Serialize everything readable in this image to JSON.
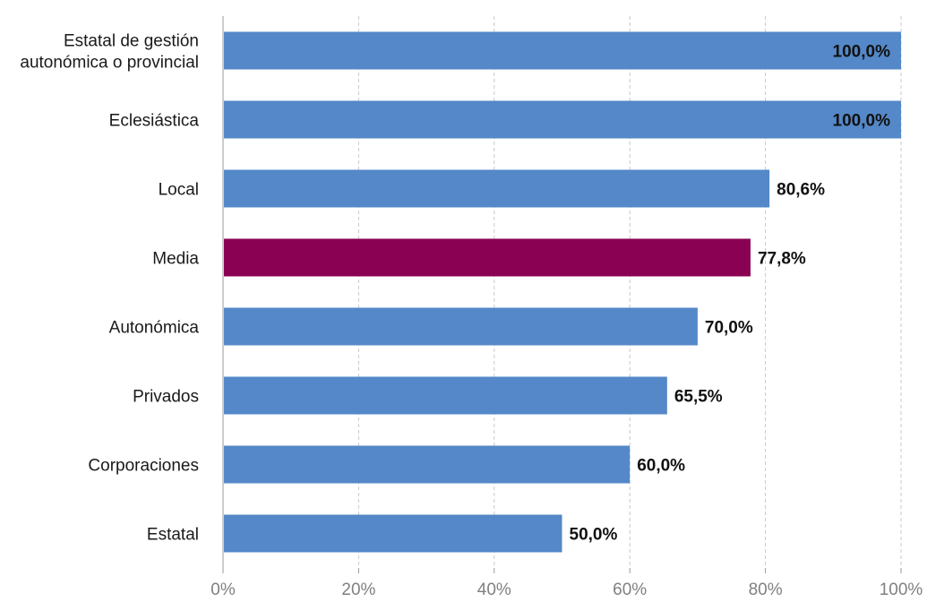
{
  "chart_data": {
    "type": "bar",
    "orientation": "horizontal",
    "categories": [
      [
        "Estatal de gestión",
        "autonómica o provincial"
      ],
      [
        "Eclesiástica"
      ],
      [
        "Local"
      ],
      [
        "Media"
      ],
      [
        "Autonómica"
      ],
      [
        "Privados"
      ],
      [
        "Corporaciones"
      ],
      [
        "Estatal"
      ]
    ],
    "values": [
      100.0,
      100.0,
      80.6,
      77.8,
      70.0,
      65.5,
      60.0,
      50.0
    ],
    "value_labels": [
      "100,0%",
      "100,0%",
      "80,6%",
      "77,8%",
      "70,0%",
      "65,5%",
      "60,0%",
      "50,0%"
    ],
    "highlight": [
      false,
      false,
      false,
      true,
      false,
      false,
      false,
      false
    ],
    "xlim": [
      0,
      100
    ],
    "xticks": [
      0,
      20,
      40,
      60,
      80,
      100
    ],
    "xtick_labels": [
      "0%",
      "20%",
      "40%",
      "60%",
      "80%",
      "100%"
    ],
    "grid": "vertical dashed",
    "colors": {
      "bar": "#5488c8",
      "highlight": "#8a0052",
      "grid": "#c8c8c8",
      "axis": "#9a9a9a"
    },
    "title": "",
    "xlabel": "",
    "ylabel": ""
  }
}
